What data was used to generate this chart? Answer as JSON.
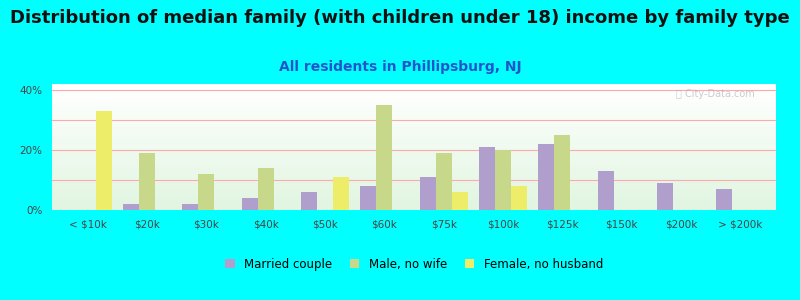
{
  "title": "Distribution of median family (with children under 18) income by family type",
  "subtitle": "All residents in Phillipsburg, NJ",
  "categories": [
    "< $10k",
    "$20k",
    "$30k",
    "$40k",
    "$50k",
    "$60k",
    "$75k",
    "$100k",
    "$125k",
    "$150k",
    "$200k",
    "> $200k"
  ],
  "series": {
    "Married couple": [
      0,
      2,
      2,
      4,
      6,
      8,
      11,
      21,
      22,
      13,
      9,
      7
    ],
    "Male, no wife": [
      0,
      19,
      12,
      14,
      0,
      35,
      19,
      20,
      25,
      0,
      0,
      0
    ],
    "Female, no husband": [
      33,
      0,
      0,
      0,
      11,
      0,
      6,
      8,
      0,
      0,
      0,
      0
    ]
  },
  "colors": {
    "Married couple": "#b09fcc",
    "Male, no wife": "#c8d88a",
    "Female, no husband": "#eded6a"
  },
  "ylim": [
    0,
    42
  ],
  "yticks": [
    0,
    20,
    40
  ],
  "ytick_labels": [
    "0%",
    "20%",
    "40%"
  ],
  "grid_ticks": [
    0,
    10,
    20,
    30,
    40
  ],
  "background_color": "#00FFFF",
  "title_fontsize": 13,
  "subtitle_fontsize": 10,
  "subtitle_color": "#2255cc",
  "watermark_text": "ⓘ City-Data.com",
  "bar_width": 0.27
}
